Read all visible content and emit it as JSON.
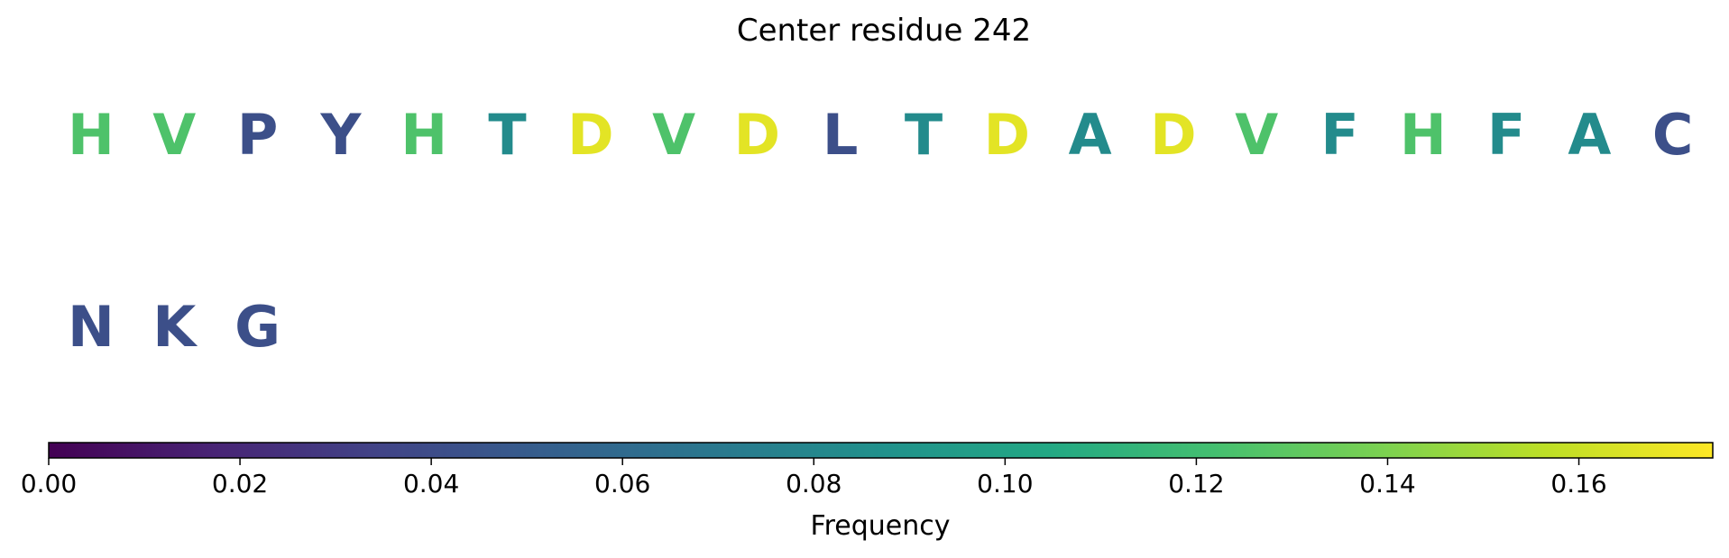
{
  "chart_data": {
    "type": "table",
    "title": "Center residue 242",
    "residues": [
      {
        "letter": "H",
        "freq": 0.125
      },
      {
        "letter": "V",
        "freq": 0.125
      },
      {
        "letter": "P",
        "freq": 0.042
      },
      {
        "letter": "Y",
        "freq": 0.042
      },
      {
        "letter": "H",
        "freq": 0.125
      },
      {
        "letter": "T",
        "freq": 0.083
      },
      {
        "letter": "D",
        "freq": 0.167
      },
      {
        "letter": "V",
        "freq": 0.125
      },
      {
        "letter": "D",
        "freq": 0.167
      },
      {
        "letter": "L",
        "freq": 0.042
      },
      {
        "letter": "T",
        "freq": 0.083
      },
      {
        "letter": "D",
        "freq": 0.167
      },
      {
        "letter": "A",
        "freq": 0.083
      },
      {
        "letter": "D",
        "freq": 0.167
      },
      {
        "letter": "V",
        "freq": 0.125
      },
      {
        "letter": "F",
        "freq": 0.083
      },
      {
        "letter": "H",
        "freq": 0.125
      },
      {
        "letter": "F",
        "freq": 0.083
      },
      {
        "letter": "A",
        "freq": 0.083
      },
      {
        "letter": "C",
        "freq": 0.042
      },
      {
        "letter": "N",
        "freq": 0.042
      },
      {
        "letter": "K",
        "freq": 0.042
      },
      {
        "letter": "G",
        "freq": 0.042
      }
    ],
    "colorbar": {
      "label": "Frequency",
      "range": [
        0,
        0.174
      ],
      "colormap": "viridis",
      "ticks": [
        0.0,
        0.02,
        0.04,
        0.06,
        0.08,
        0.1,
        0.12,
        0.14,
        0.16
      ],
      "tick_labels": [
        "0.00",
        "0.02",
        "0.04",
        "0.06",
        "0.08",
        "0.10",
        "0.12",
        "0.14",
        "0.16"
      ]
    }
  }
}
